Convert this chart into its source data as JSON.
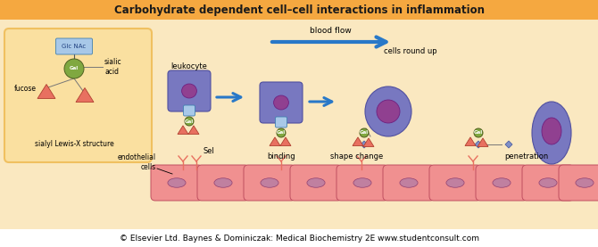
{
  "title": "Carbohydrate dependent cell–cell interactions in inflammation",
  "title_fontsize": 8.5,
  "title_bg": "#F5A840",
  "main_bg": "#FAE8C0",
  "footer_text": "© Elsevier Ltd. Baynes & Dominiczak: Medical Biochemistry 2E www.studentconsult.com",
  "footer_bg": "#FFFFFF",
  "footer_fontsize": 6.5,
  "leukocyte_color": "#7878C0",
  "leukocyte_nucleus_color": "#904090",
  "endothelial_color": "#F09090",
  "endothelial_nucleus_color": "#C080A0",
  "gal_color": "#80A840",
  "glcnac_color": "#A8C8E8",
  "fucose_color": "#E87060",
  "arrow_color": "#2878C8",
  "sel_color": "#E87060",
  "diamond_color": "#8090C8",
  "box_color": "#F0C060",
  "inset_bg": "#FAE0A0",
  "blood_flow_text": "blood flow",
  "leukocyte_label": "leukocyte",
  "sel_label": "Sel",
  "endothelial_label": "endothelial\ncells",
  "binding_label": "binding",
  "shape_change_label": "shape change",
  "cells_round_up_label": "cells round up",
  "penetration_label": "penetration",
  "fucose_label": "fucose",
  "sialic_label": "sialic\nacid",
  "sialyl_label": "sialyl Lewis-X structure",
  "gal_label": "Gal",
  "glcnac_label": "Glc NAc"
}
